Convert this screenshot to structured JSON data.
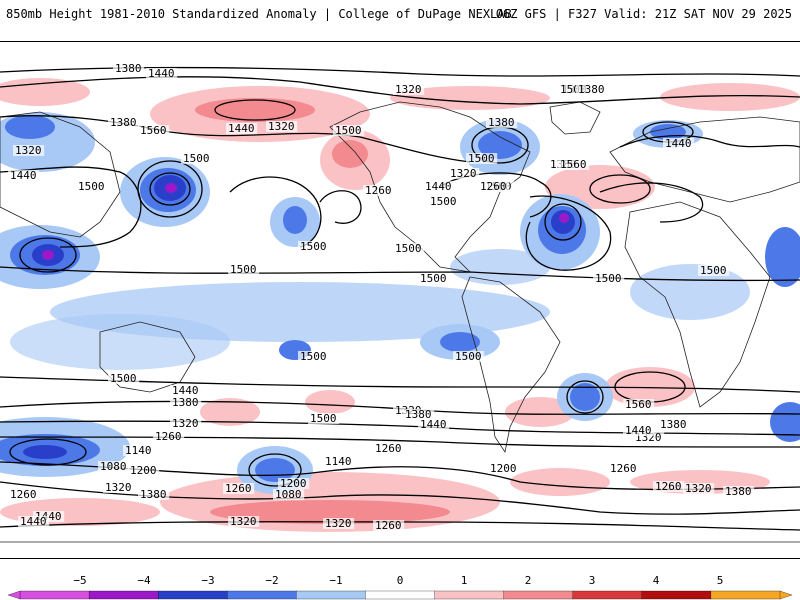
{
  "header": {
    "title": "850mb Height 1981-2010 Standardized Anomaly | College of DuPage NEXLAB",
    "run": "06Z GFS | F327 Valid: 21Z SAT NOV 29 2025"
  },
  "contour_labels": [
    "1380",
    "1440",
    "1320",
    "1380",
    "1440",
    "1500",
    "1320",
    "1380",
    "1440",
    "1500",
    "1500",
    "1560",
    "1260",
    "1320",
    "1380",
    "1380",
    "1440",
    "1500",
    "1500",
    "1500",
    "1500",
    "1500",
    "1500",
    "1500",
    "1560",
    "1320",
    "1260",
    "1380",
    "1440",
    "1500",
    "1500",
    "1500",
    "1500",
    "1440",
    "1380",
    "1320",
    "1260",
    "1140",
    "1080",
    "1200",
    "1260",
    "1320",
    "1380",
    "1440",
    "1500",
    "1500",
    "1140",
    "1260",
    "1080",
    "1200",
    "1260",
    "1200",
    "1320",
    "1380",
    "1440",
    "1500",
    "1560",
    "1320",
    "1380",
    "1440",
    "1260",
    "1260",
    "1320",
    "1380",
    "1320",
    "1440",
    "1320",
    "1260"
  ],
  "colorbar": {
    "ticks": [
      "−5",
      "−4",
      "−3",
      "−2",
      "−1",
      "0",
      "1",
      "2",
      "3",
      "4",
      "5"
    ],
    "colors": [
      "#d64fe0",
      "#9b19c9",
      "#2a3fc9",
      "#4d79e8",
      "#a8c8f5",
      "#ffffff",
      "#fbc2c6",
      "#f38a8f",
      "#d93838",
      "#b30d0d",
      "#f5a623"
    ]
  }
}
